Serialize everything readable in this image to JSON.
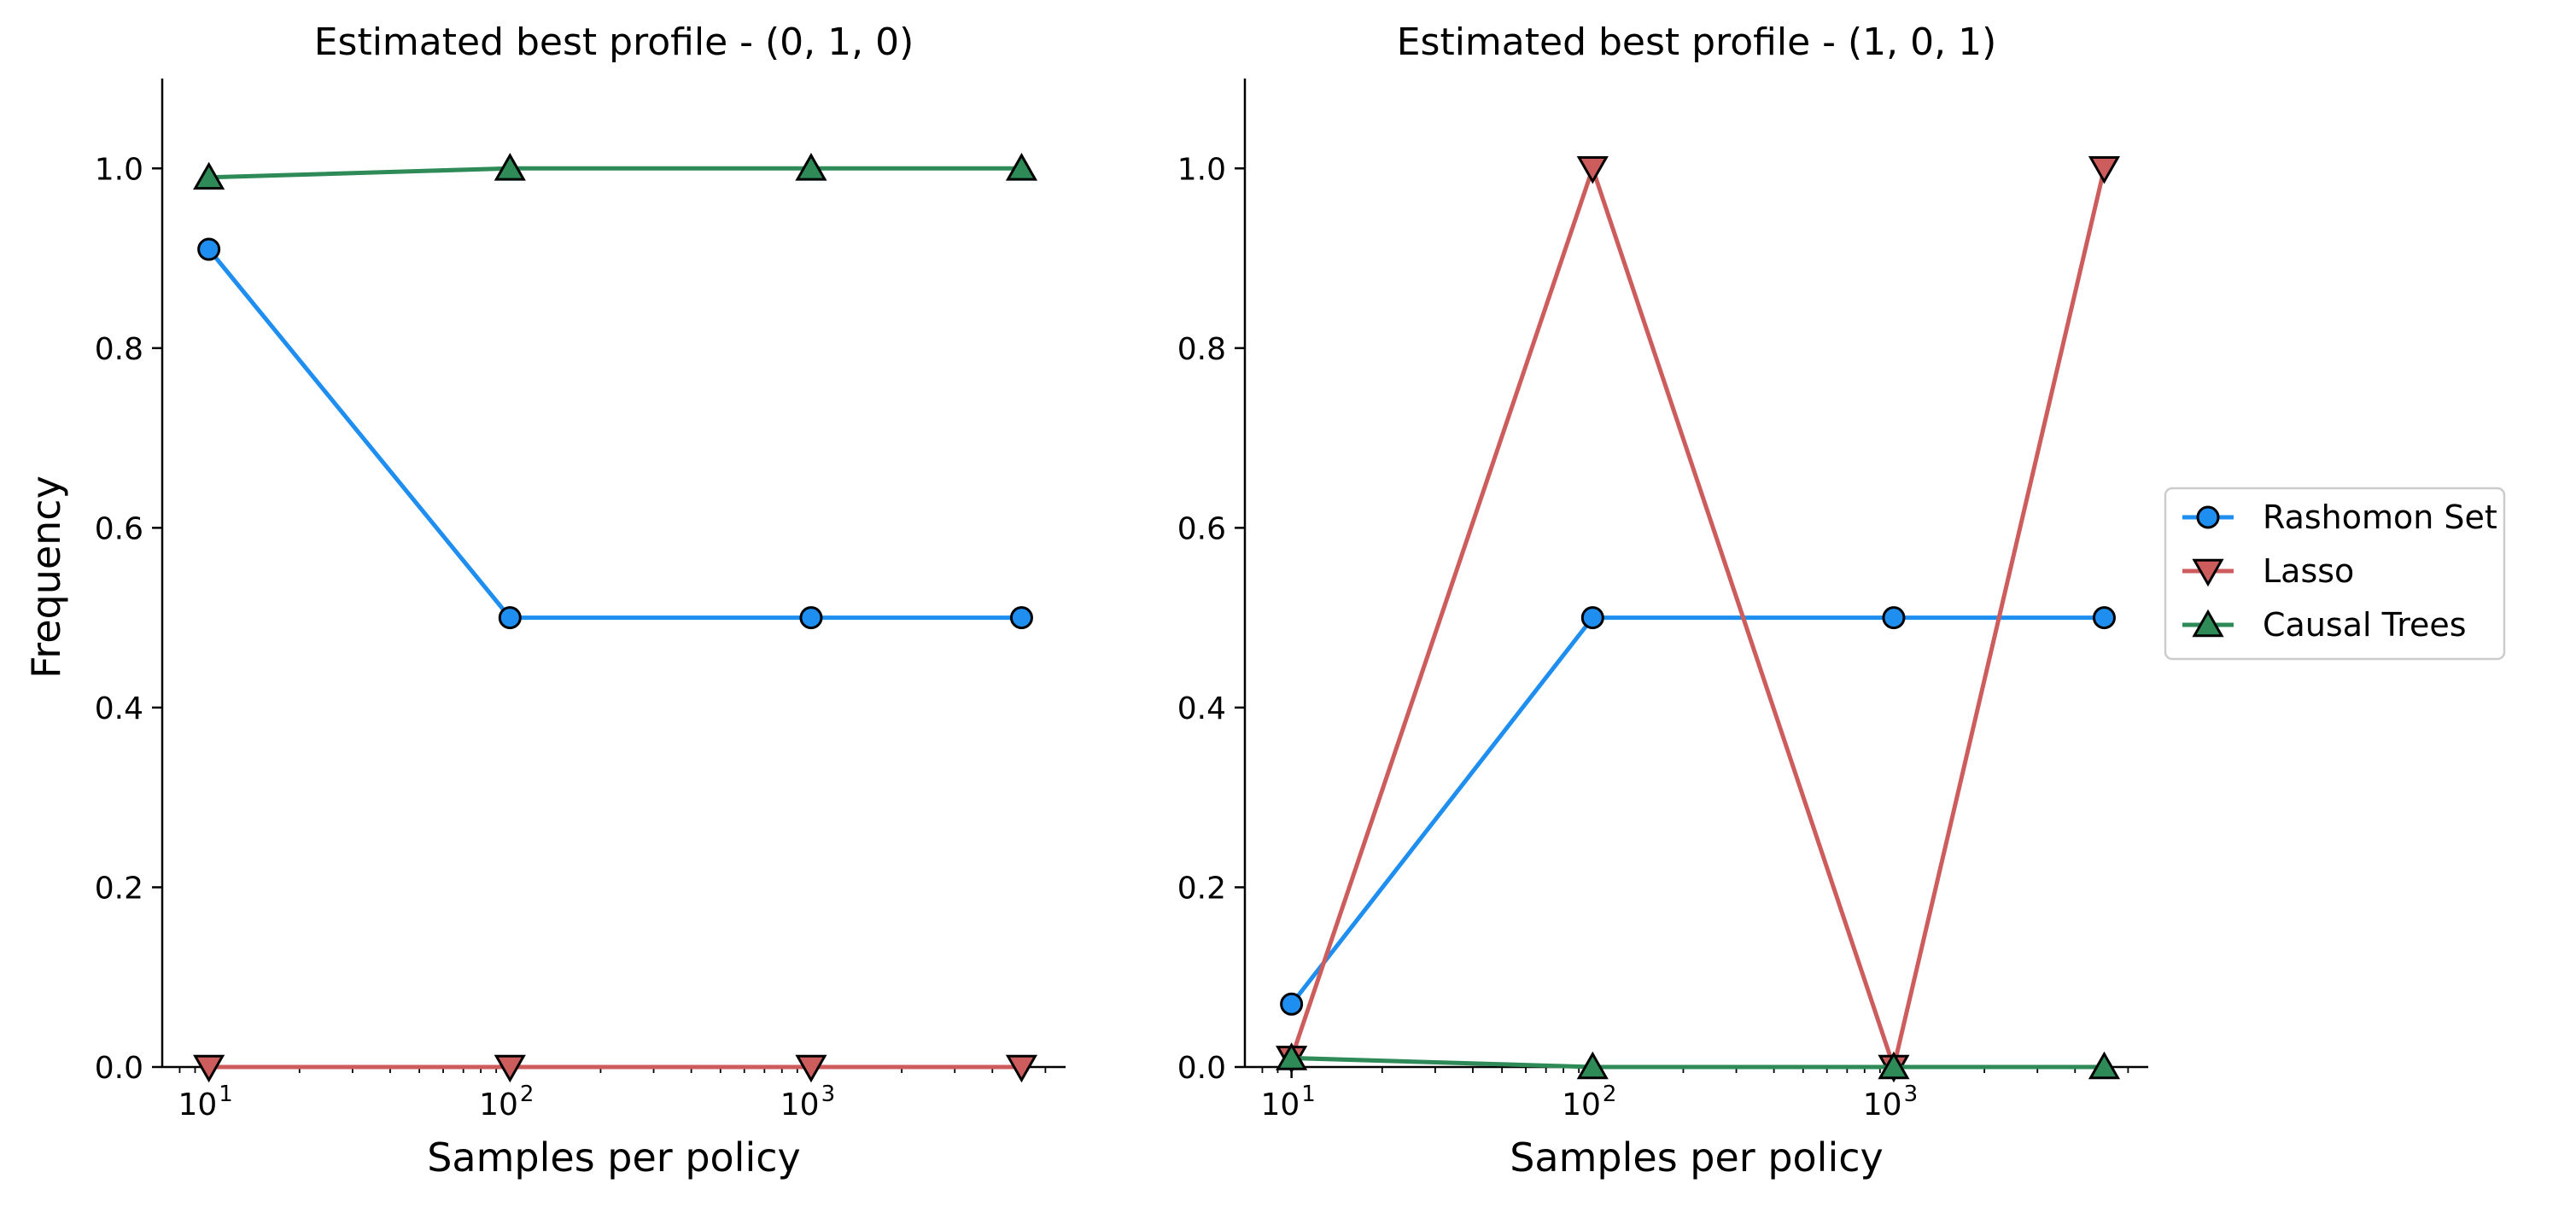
{
  "chart_data": [
    {
      "type": "line",
      "title": "Estimated best profile - (0, 1, 0)",
      "xlabel": "Samples per policy",
      "ylabel": "Frequency",
      "xscale": "log",
      "xlim": [
        7,
        7000
      ],
      "ylim": [
        0,
        1.1
      ],
      "x_ticks": [
        10,
        100,
        1000
      ],
      "x_tick_base": [
        "10",
        "10",
        "10"
      ],
      "x_tick_exp": [
        "1",
        "2",
        "3"
      ],
      "y_ticks": [
        0.0,
        0.2,
        0.4,
        0.6,
        0.8,
        1.0
      ],
      "y_tick_labels": [
        "0.0",
        "0.2",
        "0.4",
        "0.6",
        "0.8",
        "1.0"
      ],
      "x": [
        10,
        100,
        1000,
        5000
      ],
      "series": [
        {
          "name": "Rashomon Set",
          "values": [
            0.91,
            0.5,
            0.5,
            0.5
          ],
          "color": "#1f8ef1",
          "marker": "circle"
        },
        {
          "name": "Lasso",
          "values": [
            0.0,
            0.0,
            0.0,
            0.0
          ],
          "color": "#cd5c5c",
          "marker": "triangle-down"
        },
        {
          "name": "Causal Trees",
          "values": [
            0.99,
            1.0,
            1.0,
            1.0
          ],
          "color": "#2e8b57",
          "marker": "triangle-up"
        }
      ],
      "grid": false,
      "legend": "none"
    },
    {
      "type": "line",
      "title": "Estimated best profile - (1, 0, 1)",
      "xlabel": "Samples per policy",
      "ylabel": "",
      "xscale": "log",
      "xlim": [
        7,
        7000
      ],
      "ylim": [
        0,
        1.1
      ],
      "x_ticks": [
        10,
        100,
        1000
      ],
      "x_tick_base": [
        "10",
        "10",
        "10"
      ],
      "x_tick_exp": [
        "1",
        "2",
        "3"
      ],
      "y_ticks": [
        0.0,
        0.2,
        0.4,
        0.6,
        0.8,
        1.0
      ],
      "y_tick_labels": [
        "0.0",
        "0.2",
        "0.4",
        "0.6",
        "0.8",
        "1.0"
      ],
      "x": [
        10,
        100,
        1000,
        5000
      ],
      "series": [
        {
          "name": "Rashomon Set",
          "values": [
            0.07,
            0.5,
            0.5,
            0.5
          ],
          "color": "#1f8ef1",
          "marker": "circle"
        },
        {
          "name": "Lasso",
          "values": [
            0.01,
            1.0,
            0.0,
            1.0
          ],
          "color": "#cd5c5c",
          "marker": "triangle-down"
        },
        {
          "name": "Causal Trees",
          "values": [
            0.01,
            0.0,
            0.0,
            0.0
          ],
          "color": "#2e8b57",
          "marker": "triangle-up"
        }
      ],
      "grid": false,
      "legend": "right"
    }
  ]
}
